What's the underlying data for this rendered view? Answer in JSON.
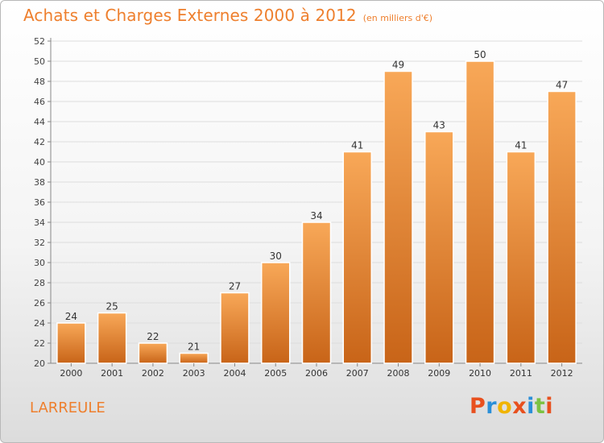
{
  "header": {
    "title": "Achats et Charges Externes 2000 à 2012",
    "unit": "(en milliers d'€)"
  },
  "footer": {
    "commune": "LARREULE",
    "logo_text": "Proxiti",
    "logo_colors": [
      "#e8501e",
      "#2a8fd8",
      "#f0b400",
      "#e8501e",
      "#2a8fd8",
      "#7cc242",
      "#e8501e"
    ]
  },
  "colors": {
    "accent": "#ee7f2d",
    "bar_top": "#f8a858",
    "bar_bottom": "#c86418",
    "grid": "#dddddd",
    "axis": "#888888"
  },
  "chart_data": {
    "type": "bar",
    "title": "Achats et Charges Externes 2000 à 2012",
    "subtitle": "(en milliers d'€)",
    "categories": [
      "2000",
      "2001",
      "2002",
      "2003",
      "2004",
      "2005",
      "2006",
      "2007",
      "2008",
      "2009",
      "2010",
      "2011",
      "2012"
    ],
    "values": [
      24,
      25,
      22,
      21,
      27,
      30,
      34,
      41,
      49,
      43,
      50,
      41,
      47
    ],
    "ylim": [
      20,
      52
    ],
    "yticks": [
      20,
      22,
      24,
      26,
      28,
      30,
      32,
      34,
      36,
      38,
      40,
      42,
      44,
      46,
      48,
      50,
      52
    ],
    "grid": true,
    "data_labels": true,
    "xlabel": "",
    "ylabel": ""
  }
}
